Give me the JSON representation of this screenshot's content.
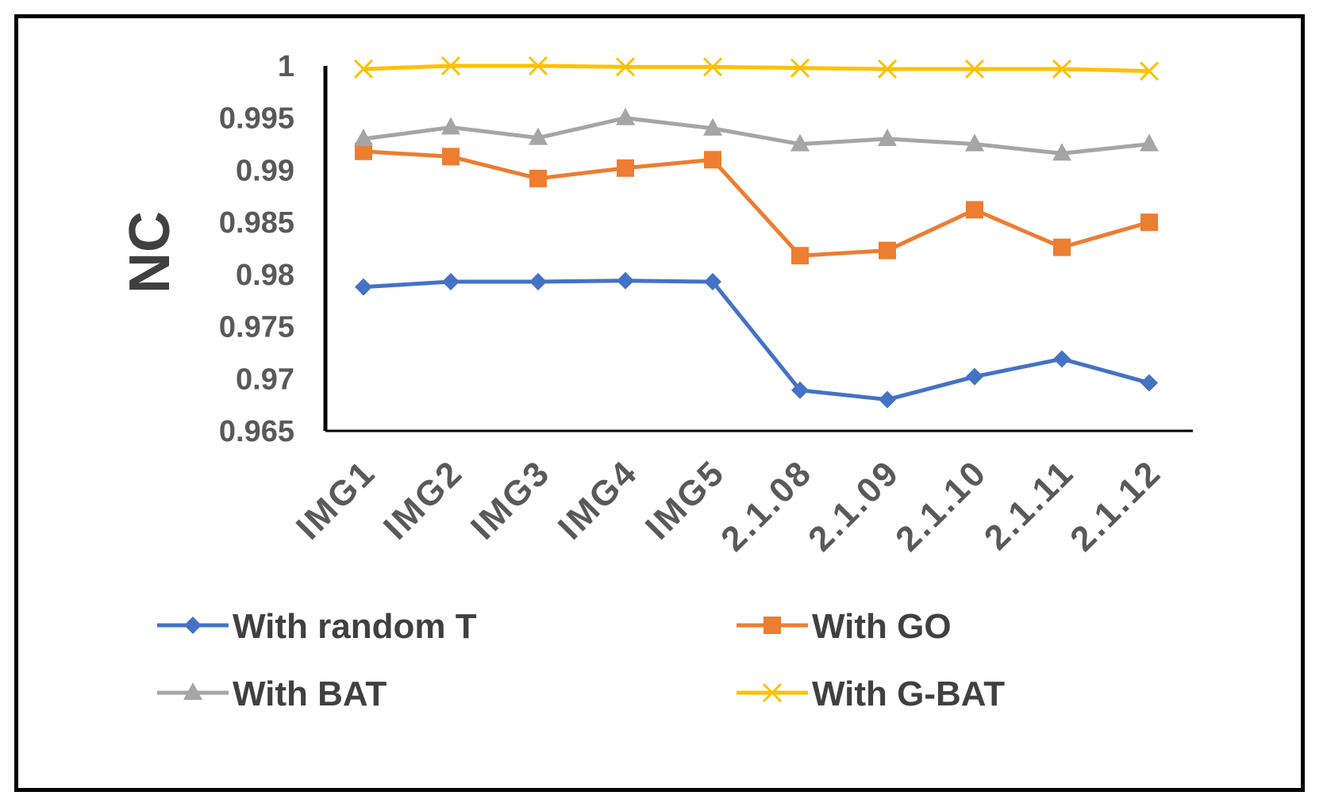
{
  "chart_data": {
    "type": "line",
    "title": "",
    "xlabel": "",
    "ylabel": "NC",
    "ylim": [
      0.965,
      1.0
    ],
    "yticks": [
      "0.965",
      "0.97",
      "0.975",
      "0.98",
      "0.985",
      "0.99",
      "0.995",
      "1"
    ],
    "categories": [
      "IMG1",
      "IMG2",
      "IMG3",
      "IMG4",
      "IMG5",
      "2.1.08",
      "2.1.09",
      "2.1.10",
      "2.1.11",
      "2.1.12"
    ],
    "series": [
      {
        "name": "With random T",
        "color": "#4472C4",
        "marker": "diamond",
        "values": [
          0.9788,
          0.9793,
          0.9793,
          0.9794,
          0.9793,
          0.9689,
          0.968,
          0.9702,
          0.9719,
          0.9696
        ]
      },
      {
        "name": "With GO",
        "color": "#ED7D31",
        "marker": "square",
        "values": [
          0.9918,
          0.9913,
          0.9892,
          0.9902,
          0.991,
          0.9818,
          0.9823,
          0.9862,
          0.9826,
          0.985
        ]
      },
      {
        "name": "With BAT",
        "color": "#A5A5A5",
        "marker": "triangle",
        "values": [
          0.993,
          0.9941,
          0.9931,
          0.995,
          0.994,
          0.9925,
          0.993,
          0.9925,
          0.9916,
          0.9925
        ]
      },
      {
        "name": "With G-BAT",
        "color": "#FFC000",
        "marker": "x",
        "values": [
          0.9997,
          1.0,
          1.0,
          0.9999,
          0.9999,
          0.9998,
          0.9997,
          0.9997,
          0.9997,
          0.9995
        ]
      }
    ],
    "legend_position": "bottom",
    "grid": false
  }
}
